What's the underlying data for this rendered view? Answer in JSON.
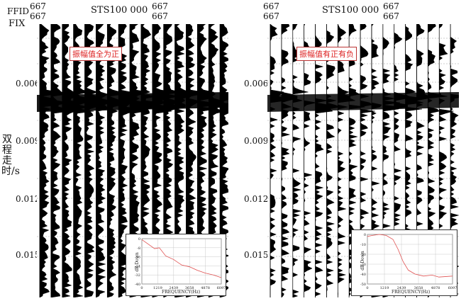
{
  "header": {
    "fid_label": "FFID",
    "fix_label": "FIX",
    "left": {
      "num1": "667",
      "num1b": "667",
      "station": "STS100  000",
      "num2": "667",
      "num2b": "667"
    },
    "right": {
      "num1": "667",
      "num1b": "667",
      "station": "STS100  000",
      "num2": "667",
      "num2b": "667"
    }
  },
  "y_axis": {
    "label": "双程走时/s",
    "ticks": [
      "0.006",
      "0.009",
      "0.012",
      "0.015"
    ]
  },
  "left_panel": {
    "annotation": "振幅值全为正",
    "inset": {
      "ylabel": "dB Down",
      "xlabel": "FREQUENCY(Hz)",
      "yticks": [
        "0",
        "-8",
        "-16",
        "-24",
        "-32",
        "-40"
      ],
      "xticks": [
        "0",
        "1219",
        "2439",
        "3658",
        "4878",
        "6097"
      ]
    }
  },
  "right_panel": {
    "annotation": "振幅值有正有负",
    "inset": {
      "ylabel": "dB Down",
      "xlabel": "FREQUENCY(Hz)",
      "yticks": [
        "0",
        "-10",
        "-20",
        "-30",
        "-40",
        "-50"
      ],
      "xticks": [
        "0",
        "1219",
        "2439",
        "3658",
        "4878",
        "6097"
      ]
    }
  },
  "colors": {
    "trace": "#000000",
    "annotation": "#dd2222",
    "spectrum": "#e05050"
  }
}
